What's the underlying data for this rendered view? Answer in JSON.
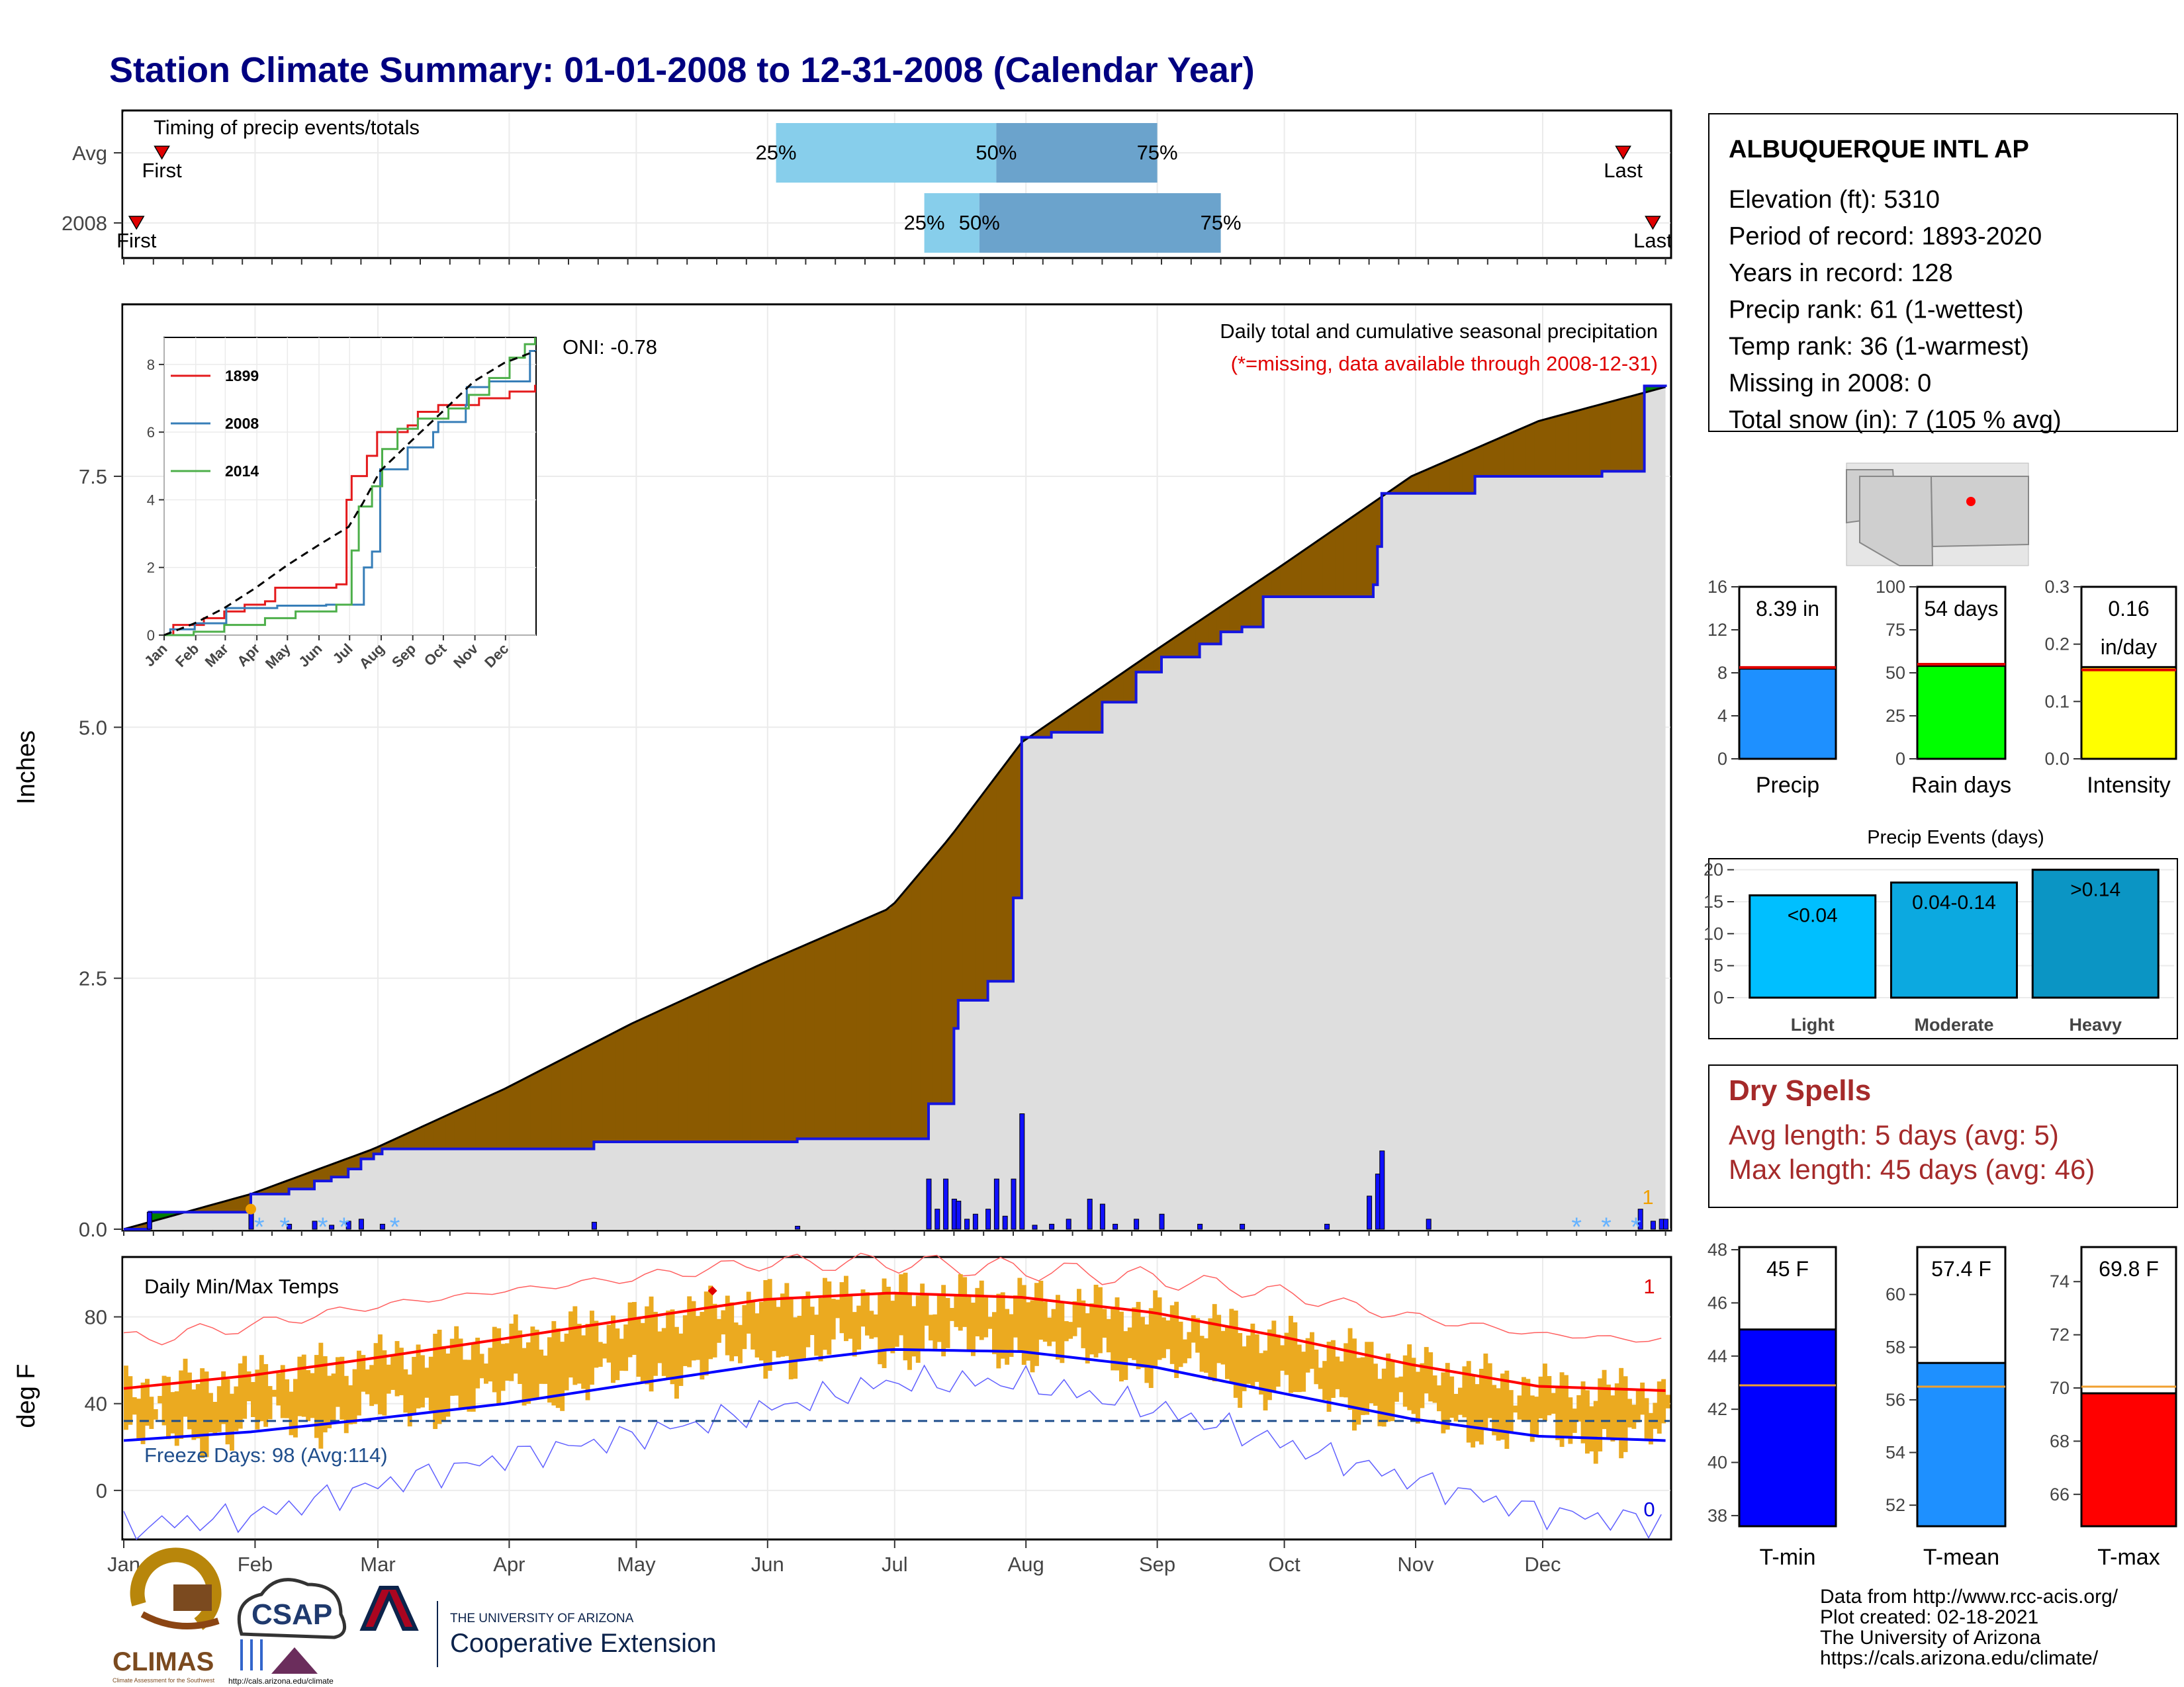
{
  "header": {
    "title": "Station Climate Summary: 01-01-2008 to 12-31-2008 (Calendar Year)"
  },
  "station": {
    "name": "ALBUQUERQUE INTL AP",
    "lines": [
      "Elevation (ft): 5310",
      "Period of record: 1893-2020",
      "Years in record: 128",
      "Precip rank: 61 (1-wettest)",
      "Temp rank: 36 (1-warmest)",
      "Missing in 2008: 0",
      "Total snow (in): 7 (105 % avg)"
    ]
  },
  "colors": {
    "title": "#000080",
    "brown": "#8B5A00",
    "green": "#008000",
    "blue_bar": "#1010FF",
    "tmax": "#FF0000",
    "tmin": "#0000FF",
    "temp_bar": "#EBAA20",
    "dry_spells": "#A52A2A",
    "light_blue": "#87CEEB",
    "mid_blue": "#6BA3CC"
  },
  "chart_data": [
    {
      "id": "timing",
      "type": "bar",
      "title": "Timing of precip events/totals",
      "rows": [
        "Avg",
        "2008"
      ],
      "markers": {
        "Avg": {
          "first_day": 10,
          "q25_day": 155,
          "q50_day": 207,
          "q75_day": 245,
          "last_day": 355,
          "first_label": "First",
          "last_label": "Last",
          "q25_label": "25%",
          "q50_label": "50%",
          "q75_label": "75%"
        },
        "2008": {
          "first_day": 4,
          "q25_day": 190,
          "q50_day": 203,
          "q75_day": 260,
          "last_day": 362,
          "first_label": "First",
          "last_label": "Last",
          "q25_label": "25%",
          "q50_label": "50%",
          "q75_label": "75%"
        }
      }
    },
    {
      "id": "precip",
      "type": "area",
      "title": "Daily total and cumulative seasonal precipitation",
      "subtitle": "(*=missing, data available through 2008-12-31)",
      "oni": "ONI: -0.78",
      "ylabel": "Inches",
      "ylim": [
        0,
        9.2
      ],
      "yticks": [
        0.0,
        2.5,
        5.0,
        7.5
      ],
      "ytick_labels": [
        "0.0",
        "2.5",
        "5.0",
        "7.5"
      ],
      "x_months": [
        "Jan",
        "Feb",
        "Mar",
        "Apr",
        "May",
        "Jun",
        "Jul",
        "Aug",
        "Sep",
        "Oct",
        "Nov",
        "Dec"
      ],
      "avg_cumulative": {
        "doy": [
          1,
          31,
          60,
          91,
          121,
          152,
          182,
          196,
          213,
          244,
          274,
          305,
          335,
          365
        ],
        "value": [
          0,
          0.35,
          0.8,
          1.4,
          2.05,
          2.65,
          3.2,
          3.9,
          4.85,
          5.75,
          6.6,
          7.5,
          8.05,
          8.39
        ]
      },
      "cumulative_2008": [
        [
          1,
          0
        ],
        [
          7,
          0.17
        ],
        [
          30,
          0.17
        ],
        [
          31,
          0.35
        ],
        [
          40,
          0.4
        ],
        [
          46,
          0.48
        ],
        [
          50,
          0.52
        ],
        [
          54,
          0.6
        ],
        [
          57,
          0.7
        ],
        [
          60,
          0.75
        ],
        [
          62,
          0.8
        ],
        [
          110,
          0.8
        ],
        [
          112,
          0.87
        ],
        [
          150,
          0.87
        ],
        [
          160,
          0.9
        ],
        [
          190,
          0.9
        ],
        [
          191,
          1.25
        ],
        [
          197,
          2.0
        ],
        [
          198,
          2.28
        ],
        [
          205,
          2.47
        ],
        [
          211,
          3.3
        ],
        [
          213,
          4.9
        ],
        [
          220,
          4.95
        ],
        [
          232,
          5.25
        ],
        [
          240,
          5.55
        ],
        [
          246,
          5.7
        ],
        [
          255,
          5.83
        ],
        [
          260,
          5.95
        ],
        [
          265,
          6.0
        ],
        [
          270,
          6.3
        ],
        [
          285,
          6.3
        ],
        [
          296,
          6.42
        ],
        [
          297,
          6.8
        ],
        [
          298,
          7.33
        ],
        [
          320,
          7.5
        ],
        [
          350,
          7.55
        ],
        [
          360,
          8.4
        ],
        [
          365,
          8.39
        ]
      ],
      "daily_bars": [
        [
          7,
          0.17
        ],
        [
          31,
          0.18
        ],
        [
          40,
          0.05
        ],
        [
          46,
          0.08
        ],
        [
          50,
          0.04
        ],
        [
          54,
          0.08
        ],
        [
          57,
          0.1
        ],
        [
          62,
          0.05
        ],
        [
          112,
          0.07
        ],
        [
          160,
          0.03
        ],
        [
          191,
          0.5
        ],
        [
          193,
          0.2
        ],
        [
          195,
          0.5
        ],
        [
          197,
          0.3
        ],
        [
          198,
          0.28
        ],
        [
          200,
          0.1
        ],
        [
          202,
          0.15
        ],
        [
          205,
          0.2
        ],
        [
          207,
          0.5
        ],
        [
          209,
          0.13
        ],
        [
          211,
          0.5
        ],
        [
          213,
          1.15
        ],
        [
          216,
          0.04
        ],
        [
          220,
          0.05
        ],
        [
          224,
          0.1
        ],
        [
          229,
          0.3
        ],
        [
          232,
          0.25
        ],
        [
          235,
          0.05
        ],
        [
          240,
          0.1
        ],
        [
          246,
          0.15
        ],
        [
          255,
          0.05
        ],
        [
          265,
          0.05
        ],
        [
          285,
          0.05
        ],
        [
          295,
          0.33
        ],
        [
          297,
          0.55
        ],
        [
          298,
          0.78
        ],
        [
          309,
          0.1
        ],
        [
          359,
          0.2
        ],
        [
          362,
          0.08
        ],
        [
          364,
          0.1
        ],
        [
          365,
          0.1
        ]
      ],
      "snow_days": [
        33,
        39,
        48,
        53,
        65,
        344,
        351,
        358
      ],
      "missing_marker_label": "1",
      "inset": {
        "type": "line",
        "x_months": [
          "Jan",
          "Feb",
          "Mar",
          "Apr",
          "May",
          "Jun",
          "Jul",
          "Aug",
          "Sep",
          "Oct",
          "Nov",
          "Dec"
        ],
        "yticks": [
          0,
          2,
          4,
          6,
          8
        ],
        "ylim": [
          0,
          8.8
        ],
        "series": [
          {
            "name": "1899",
            "color": "#E41A1C",
            "points": [
              [
                1,
                0
              ],
              [
                10,
                0.3
              ],
              [
                40,
                0.5
              ],
              [
                60,
                0.7
              ],
              [
                80,
                0.9
              ],
              [
                100,
                1.0
              ],
              [
                110,
                1.4
              ],
              [
                150,
                1.4
              ],
              [
                170,
                1.5
              ],
              [
                180,
                4.0
              ],
              [
                185,
                4.7
              ],
              [
                200,
                5.3
              ],
              [
                210,
                6.0
              ],
              [
                240,
                6.2
              ],
              [
                250,
                6.6
              ],
              [
                270,
                6.8
              ],
              [
                290,
                6.8
              ],
              [
                310,
                7.0
              ],
              [
                340,
                7.2
              ],
              [
                365,
                7.4
              ]
            ]
          },
          {
            "name": "2008",
            "color": "#377EB8",
            "points": [
              [
                1,
                0
              ],
              [
                7,
                0.17
              ],
              [
                31,
                0.35
              ],
              [
                62,
                0.8
              ],
              [
                112,
                0.87
              ],
              [
                160,
                0.9
              ],
              [
                190,
                0.9
              ],
              [
                197,
                2.0
              ],
              [
                205,
                2.47
              ],
              [
                213,
                4.9
              ],
              [
                240,
                5.55
              ],
              [
                265,
                6.0
              ],
              [
                270,
                6.3
              ],
              [
                297,
                6.8
              ],
              [
                298,
                7.33
              ],
              [
                320,
                7.5
              ],
              [
                360,
                8.4
              ],
              [
                365,
                8.39
              ]
            ]
          },
          {
            "name": "2014",
            "color": "#4DAF4A",
            "points": [
              [
                1,
                0
              ],
              [
                30,
                0.1
              ],
              [
                60,
                0.3
              ],
              [
                100,
                0.5
              ],
              [
                130,
                0.7
              ],
              [
                170,
                0.9
              ],
              [
                185,
                2.5
              ],
              [
                192,
                3.8
              ],
              [
                205,
                4.4
              ],
              [
                215,
                5.5
              ],
              [
                230,
                6.1
              ],
              [
                250,
                6.4
              ],
              [
                280,
                6.7
              ],
              [
                300,
                7.1
              ],
              [
                320,
                7.6
              ],
              [
                340,
                8.2
              ],
              [
                355,
                8.6
              ],
              [
                365,
                8.8
              ]
            ]
          },
          {
            "name": "",
            "color": "#000000",
            "dashed": true,
            "points": [
              [
                1,
                0
              ],
              [
                31,
                0.35
              ],
              [
                60,
                0.8
              ],
              [
                91,
                1.4
              ],
              [
                121,
                2.05
              ],
              [
                152,
                2.65
              ],
              [
                182,
                3.2
              ],
              [
                196,
                3.9
              ],
              [
                213,
                4.85
              ],
              [
                244,
                5.75
              ],
              [
                274,
                6.6
              ],
              [
                305,
                7.5
              ],
              [
                335,
                8.05
              ],
              [
                365,
                8.39
              ]
            ]
          }
        ]
      }
    },
    {
      "id": "temps",
      "type": "bar",
      "title": "Daily Min/Max Temps",
      "ylabel": "deg F",
      "ylim": [
        -22,
        107
      ],
      "yticks": [
        0,
        40,
        80
      ],
      "x_months": [
        "Jan",
        "Feb",
        "Mar",
        "Apr",
        "May",
        "Jun",
        "Jul",
        "Aug",
        "Sep",
        "Oct",
        "Nov",
        "Dec"
      ],
      "freeze_label": "Freeze Days: 98 (Avg:114)",
      "freeze_line": 32,
      "tmax_record_count": "1",
      "tmin_record_count": "0",
      "normals": {
        "tmax": {
          "doy": [
            1,
            31,
            60,
            91,
            121,
            152,
            182,
            213,
            244,
            274,
            305,
            335,
            365
          ],
          "value": [
            47,
            53,
            61,
            70,
            79,
            88,
            91,
            89,
            82,
            71,
            58,
            48,
            46
          ]
        },
        "tmin": {
          "doy": [
            1,
            31,
            60,
            91,
            121,
            152,
            182,
            213,
            244,
            274,
            305,
            335,
            365
          ],
          "value": [
            23,
            27,
            33,
            40,
            49,
            58,
            65,
            64,
            57,
            45,
            33,
            25,
            23
          ]
        },
        "record_max": {
          "doy": [
            1,
            31,
            60,
            91,
            121,
            152,
            182,
            213,
            244,
            274,
            305,
            335,
            365
          ],
          "value": [
            69,
            76,
            85,
            92,
            98,
            105,
            105,
            102,
            98,
            91,
            80,
            72,
            69
          ]
        },
        "record_min": {
          "doy": [
            1,
            31,
            60,
            91,
            121,
            152,
            182,
            213,
            244,
            274,
            305,
            335,
            365
          ],
          "value": [
            -17,
            -12,
            2,
            15,
            25,
            37,
            50,
            50,
            38,
            22,
            5,
            -10,
            -15
          ]
        }
      }
    },
    {
      "id": "precip_compare",
      "type": "bar",
      "panels": [
        {
          "label": "Precip",
          "value": 8.39,
          "avg": 8.5,
          "ylim": [
            0,
            16
          ],
          "yticks": [
            0,
            4,
            8,
            12,
            16
          ],
          "text": "8.39 in",
          "color": "#1E90FF"
        },
        {
          "label": "Rain days",
          "value": 54,
          "avg": 55,
          "ylim": [
            0,
            100
          ],
          "yticks": [
            0,
            25,
            50,
            75,
            100
          ],
          "text": "54 days",
          "color": "#00FF00"
        },
        {
          "label": "Intensity",
          "value": 0.16,
          "avg": 0.155,
          "ylim": [
            0,
            0.3
          ],
          "yticks": [
            0.0,
            0.1,
            0.2,
            0.3
          ],
          "ytick_labels": [
            "0.0",
            "0.1",
            "0.2",
            "0.3"
          ],
          "text": "0.16",
          "text2": "in/day",
          "color": "#FFFF00"
        }
      ]
    },
    {
      "id": "precip_events",
      "type": "bar",
      "title": "Precip Events (days)",
      "categories": [
        "Light",
        "Moderate",
        "Heavy"
      ],
      "values": [
        16,
        18,
        20
      ],
      "bar_labels": [
        "<0.04",
        "0.04-0.14",
        ">0.14"
      ],
      "ylim": [
        0,
        21
      ],
      "yticks": [
        0,
        5,
        10,
        15,
        20
      ],
      "colors": [
        "#00BFFF",
        "#0CA9E0",
        "#0B95C4"
      ]
    },
    {
      "id": "temp_compare",
      "type": "bar",
      "panels": [
        {
          "label": "T-min",
          "value": 45,
          "avg": 42.9,
          "ylim": [
            37.6,
            48.1
          ],
          "yticks": [
            38,
            40,
            42,
            44,
            46,
            48
          ],
          "text": "45 F",
          "color": "#0000FF"
        },
        {
          "label": "T-mean",
          "value": 57.4,
          "avg": 56.5,
          "ylim": [
            51.2,
            61.8
          ],
          "yticks": [
            52,
            54,
            56,
            58,
            60
          ],
          "text": "57.4 F",
          "color": "#1E90FF"
        },
        {
          "label": "T-max",
          "value": 69.8,
          "avg": 70.05,
          "ylim": [
            64.8,
            75.3
          ],
          "yticks": [
            66,
            68,
            70,
            72,
            74
          ],
          "text": "69.8 F",
          "color": "#FF0000"
        }
      ]
    }
  ],
  "dry_spells": {
    "title": "Dry Spells",
    "avg_length": "Avg length: 5 days (avg: 5)",
    "max_length": "Max length: 45 days (avg: 46)"
  },
  "footer": {
    "credits": [
      "Data from http://www.rcc-acis.org/",
      "Plot created: 02-18-2021",
      "The University of Arizona",
      "https://cals.arizona.edu/climate/"
    ],
    "logos": {
      "climas": "CLIMAS",
      "climas_sub": "Climate Assessment for the Southwest",
      "csap": "CSAP",
      "csap_url": "http://cals.arizona.edu/climate",
      "ua_top": "THE UNIVERSITY OF ARIZONA",
      "ua_main": "Cooperative Extension"
    }
  }
}
